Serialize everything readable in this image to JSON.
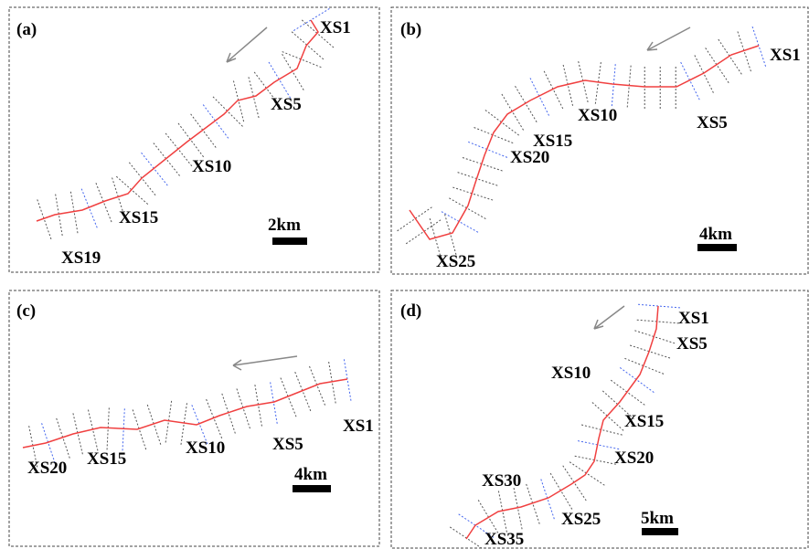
{
  "panels": [
    {
      "label": "(a)",
      "sections": [
        "XS1",
        "XS5",
        "XS10",
        "XS15",
        "XS19"
      ],
      "scale": "2km"
    },
    {
      "label": "(b)",
      "sections": [
        "XS1",
        "XS5",
        "XS10",
        "XS15",
        "XS20",
        "XS25"
      ],
      "scale": "4km"
    },
    {
      "label": "(c)",
      "sections": [
        "XS1",
        "XS5",
        "XS10",
        "XS15",
        "XS20"
      ],
      "scale": "4km"
    },
    {
      "label": "(d)",
      "sections": [
        "XS1",
        "XS5",
        "XS10",
        "XS15",
        "XS20",
        "XS25",
        "XS30",
        "XS35"
      ],
      "scale": "5km"
    }
  ]
}
